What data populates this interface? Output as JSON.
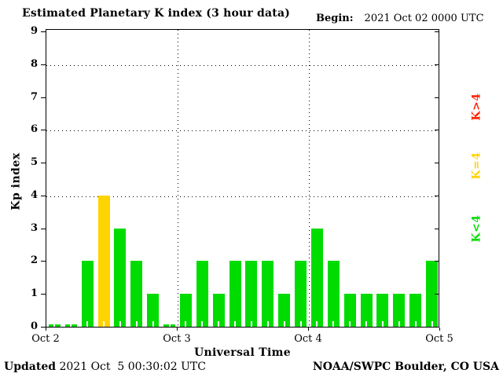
{
  "header": {
    "title": "Estimated Planetary K index (3 hour data)",
    "begin_label": "Begin:",
    "begin_value": "2021 Oct 02 0000 UTC"
  },
  "footer": {
    "updated_label": "Updated",
    "updated_value": "2021 Oct  5 00:30:02 UTC",
    "credit": "NOAA/SWPC Boulder, CO USA"
  },
  "chart_data": {
    "type": "bar",
    "title": "Estimated Planetary K index (3 hour data)",
    "xlabel": "Universal Time",
    "ylabel": "Kp index",
    "ylim": [
      0,
      9
    ],
    "y_ticks": [
      0,
      1,
      2,
      3,
      4,
      5,
      6,
      7,
      8,
      9
    ],
    "x_tick_labels": [
      "Oct 2",
      "Oct 3",
      "Oct 4",
      "Oct 5"
    ],
    "grid": {
      "h_dotted_at_k": [
        4,
        6,
        8
      ],
      "v_dotted_at_days": [
        "Oct 3",
        "Oct 4"
      ]
    },
    "interval_hours": 3,
    "days": [
      {
        "date": "Oct 2",
        "values": [
          0,
          0,
          2,
          4,
          3,
          2,
          1,
          0
        ]
      },
      {
        "date": "Oct 3",
        "values": [
          1,
          2,
          1,
          2,
          2,
          2,
          1,
          2
        ]
      },
      {
        "date": "Oct 4",
        "values": [
          3,
          2,
          1,
          1,
          1,
          1,
          1,
          2
        ]
      }
    ],
    "colors": {
      "k_lt_4": "#00DC00",
      "k_eq_4": "#FFD300",
      "k_gt_4": "#FF2200"
    },
    "legend": [
      {
        "label": "K>4",
        "class": "k_gt_4"
      },
      {
        "label": "K=4",
        "class": "k_eq_4"
      },
      {
        "label": "K<4",
        "class": "k_lt_4"
      }
    ],
    "legend_position": "right-rotated"
  }
}
